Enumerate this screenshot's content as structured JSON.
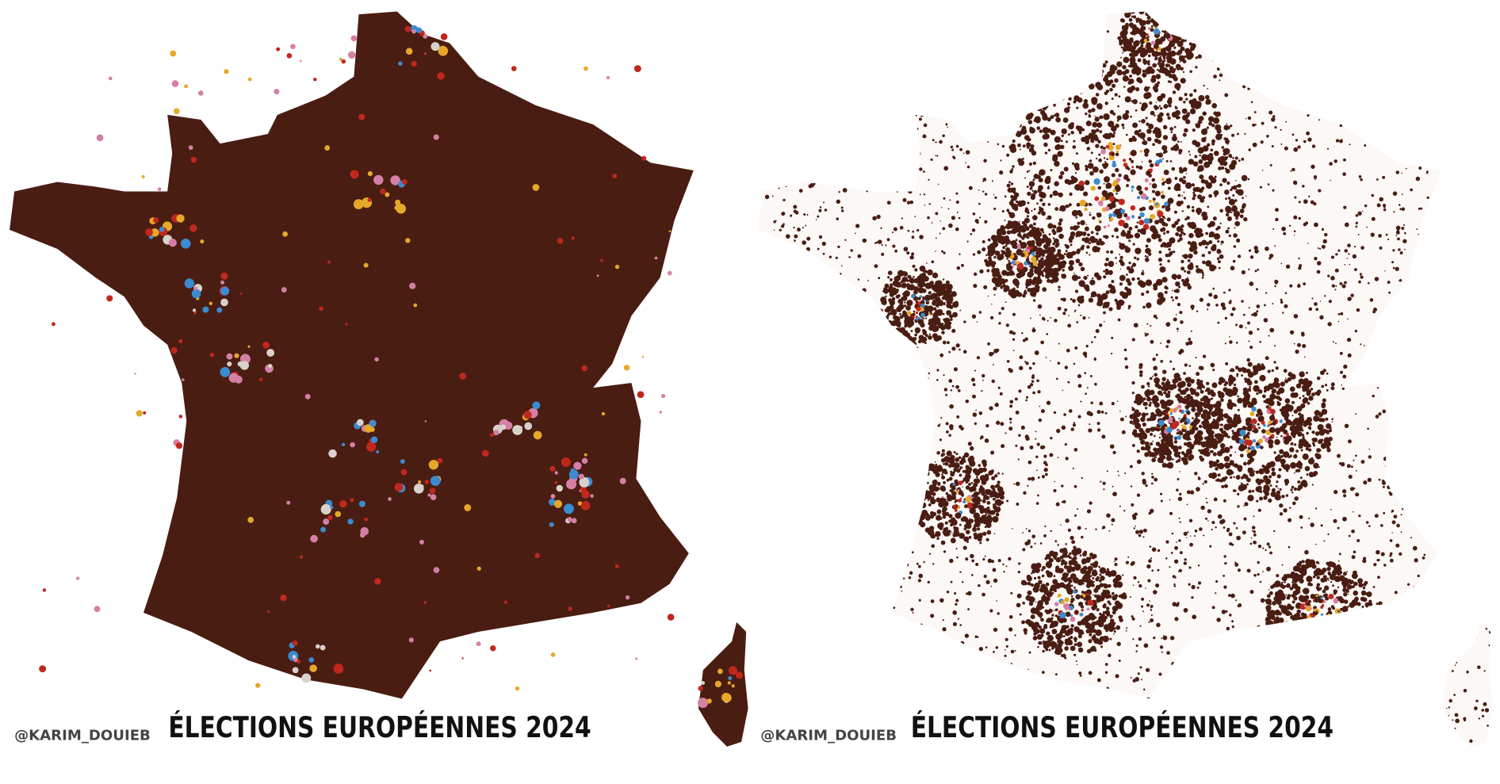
{
  "panels": [
    {
      "credit": "@KARIM_DOUIEB",
      "title": "ÉLECTIONS EUROPÉENNES 2024"
    },
    {
      "credit": "@KARIM_DOUIEB",
      "title": "ÉLECTIONS EUROPÉENNES 2024"
    }
  ]
}
